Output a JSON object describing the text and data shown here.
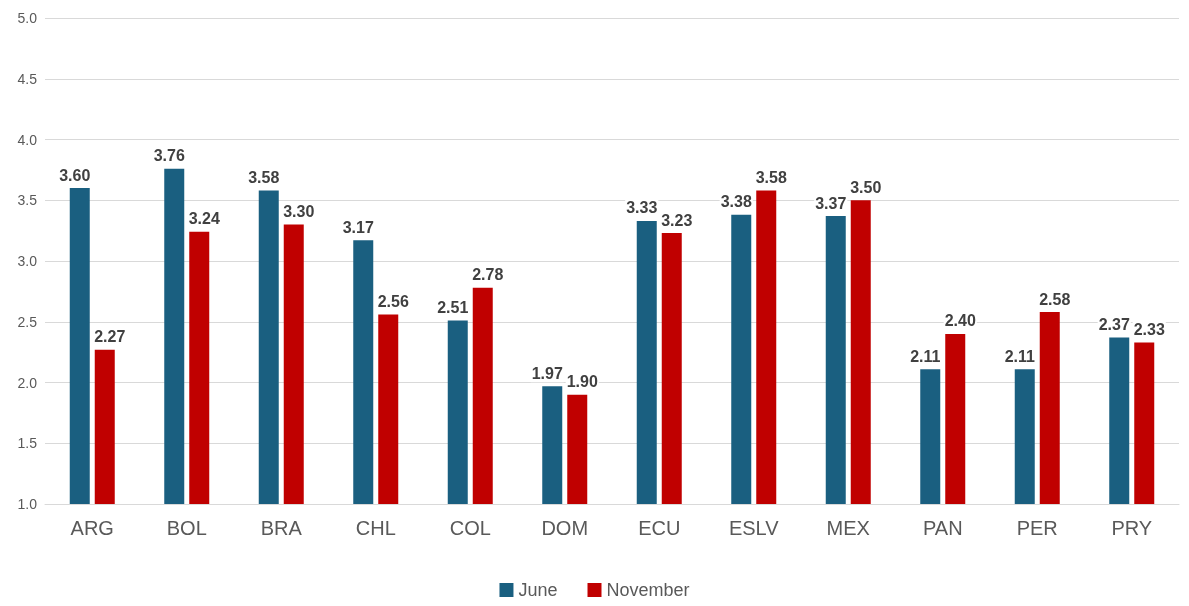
{
  "chart_data": {
    "type": "bar",
    "categories": [
      "ARG",
      "BOL",
      "BRA",
      "CHL",
      "COL",
      "DOM",
      "ECU",
      "ESLV",
      "MEX",
      "PAN",
      "PER",
      "PRY"
    ],
    "series": [
      {
        "name": "June",
        "color": "#1a5f80",
        "values": [
          3.6,
          3.76,
          3.58,
          3.17,
          2.51,
          1.97,
          3.33,
          3.38,
          3.37,
          2.11,
          2.11,
          2.37
        ],
        "value_labels": [
          "3.60",
          "3.76",
          "3.58",
          "3.17",
          "2.51",
          "1.97",
          "3.33",
          "3.38",
          "3.37",
          "2.11",
          "2.11",
          "2.37"
        ]
      },
      {
        "name": "November",
        "color": "#c00000",
        "values": [
          2.27,
          3.24,
          3.3,
          2.56,
          2.78,
          1.9,
          3.23,
          3.58,
          3.5,
          2.4,
          2.58,
          2.33
        ],
        "value_labels": [
          "2.27",
          "3.24",
          "3.30",
          "2.56",
          "2.78",
          "1.90",
          "3.23",
          "3.58",
          "3.50",
          "2.40",
          "2.58",
          "2.33"
        ]
      }
    ],
    "ylim": [
      1.0,
      5.0
    ],
    "yticks": [
      {
        "value": 1,
        "label": "1.0"
      },
      {
        "value": 1.5,
        "label": "1.5"
      },
      {
        "value": 2,
        "label": "2.0"
      },
      {
        "value": 2.5,
        "label": "2.5"
      },
      {
        "value": 3,
        "label": "3.0"
      },
      {
        "value": 3.5,
        "label": "3.5"
      },
      {
        "value": 4,
        "label": "4.0"
      },
      {
        "value": 4.5,
        "label": "4.5"
      },
      {
        "value": 5,
        "label": "5.0"
      }
    ],
    "grid": "y",
    "legend": "bottom"
  }
}
